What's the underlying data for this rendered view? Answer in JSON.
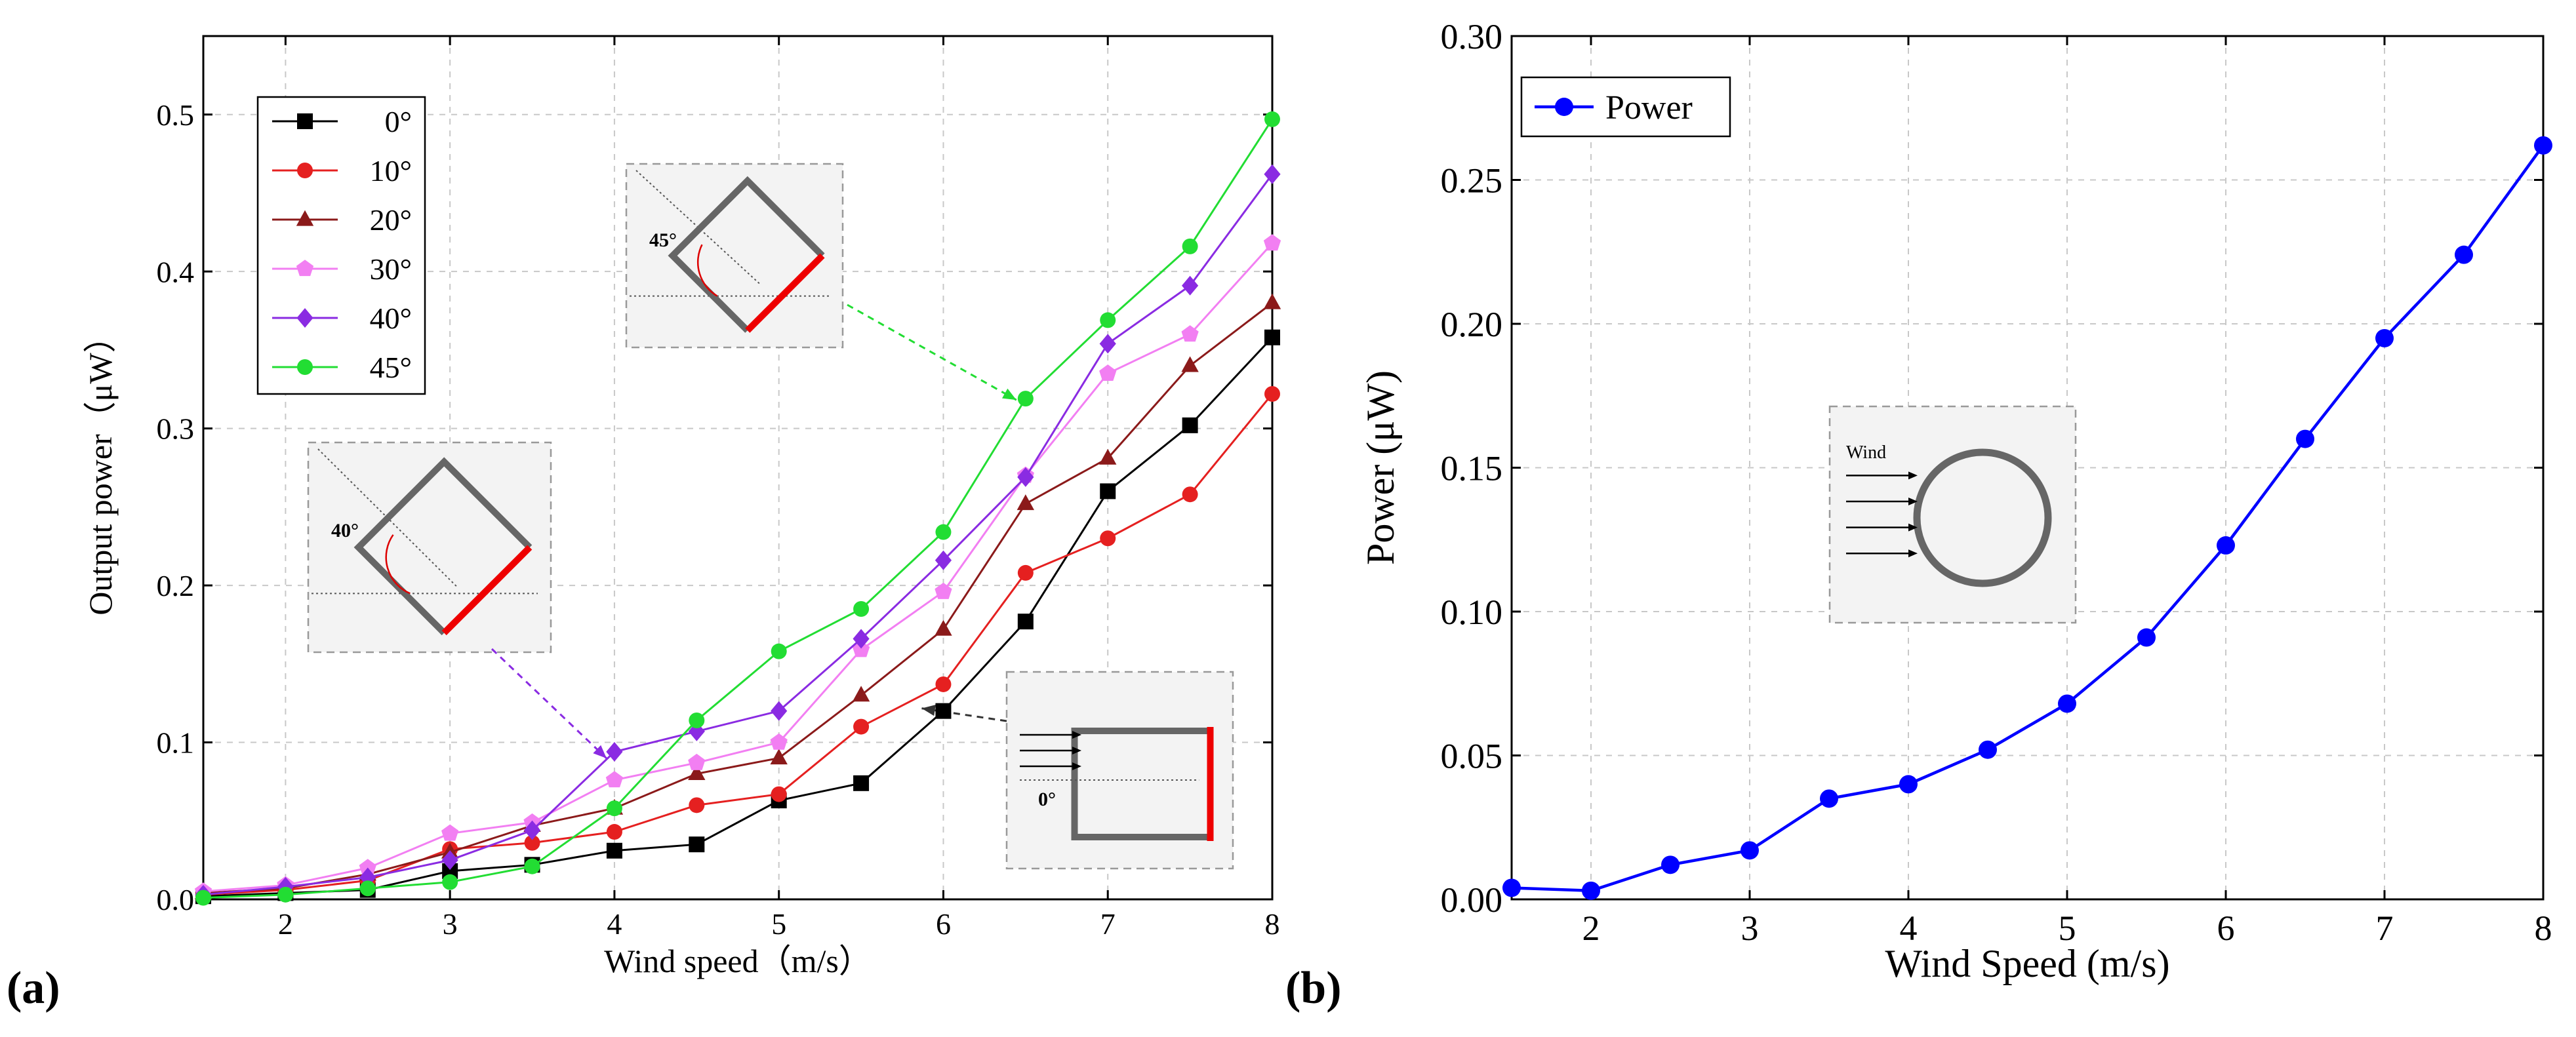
{
  "panel_labels": {
    "a": "(a)",
    "b": "(b)"
  },
  "chart_data": [
    {
      "type": "line",
      "xlabel": "Wind speed（m/s）",
      "ylabel": "Output power（μW）",
      "xlim": [
        1.5,
        8
      ],
      "ylim": [
        0,
        0.55
      ],
      "xticks": [
        "2",
        "3",
        "4",
        "5",
        "6",
        "7",
        "8"
      ],
      "yticks": [
        "0.0",
        "0.1",
        "0.2",
        "0.3",
        "0.4",
        "0.5"
      ],
      "grid": true,
      "legend_position": "top-left",
      "x": [
        1.5,
        2,
        2.5,
        3,
        3.5,
        4,
        4.5,
        5,
        5.5,
        6,
        6.5,
        7,
        7.5,
        8
      ],
      "series": [
        {
          "name": "0°",
          "color": "#000000",
          "marker": "square",
          "values": [
            0.002,
            0.004,
            0.006,
            0.018,
            0.022,
            0.031,
            0.035,
            0.063,
            0.074,
            0.12,
            0.177,
            0.26,
            0.302,
            0.358
          ]
        },
        {
          "name": "10°",
          "color": "#e52020",
          "marker": "circle",
          "values": [
            0.003,
            0.006,
            0.012,
            0.032,
            0.036,
            0.043,
            0.06,
            0.067,
            0.11,
            0.137,
            0.208,
            0.23,
            0.258,
            0.322
          ]
        },
        {
          "name": "20°",
          "color": "#8b1a1a",
          "marker": "triangle",
          "values": [
            0.004,
            0.007,
            0.016,
            0.03,
            0.047,
            0.058,
            0.08,
            0.09,
            0.13,
            0.172,
            0.252,
            0.281,
            0.34,
            0.38
          ]
        },
        {
          "name": "30°",
          "color": "#f27ff2",
          "marker": "pentagon",
          "values": [
            0.005,
            0.009,
            0.02,
            0.042,
            0.049,
            0.076,
            0.087,
            0.1,
            0.159,
            0.196,
            0.27,
            0.335,
            0.36,
            0.418
          ]
        },
        {
          "name": "40°",
          "color": "#8a2be2",
          "marker": "diamond",
          "values": [
            0.003,
            0.008,
            0.014,
            0.025,
            0.044,
            0.094,
            0.107,
            0.12,
            0.166,
            0.216,
            0.269,
            0.354,
            0.391,
            0.462
          ]
        },
        {
          "name": "45°",
          "color": "#22dd33",
          "marker": "circle",
          "values": [
            0.001,
            0.003,
            0.007,
            0.011,
            0.021,
            0.058,
            0.114,
            0.158,
            0.185,
            0.234,
            0.319,
            0.369,
            0.416,
            0.497
          ]
        }
      ],
      "insets": [
        {
          "angle_label": "45°",
          "wind_arrows": false
        },
        {
          "angle_label": "40°",
          "wind_arrows": false
        },
        {
          "angle_label": "0°",
          "wind_arrows": true
        }
      ]
    },
    {
      "type": "line",
      "xlabel": "Wind Speed (m/s)",
      "ylabel": "Power (μW)",
      "xlim": [
        1.5,
        8
      ],
      "ylim": [
        0,
        0.3
      ],
      "xticks": [
        "2",
        "3",
        "4",
        "5",
        "6",
        "7",
        "8"
      ],
      "yticks": [
        "0.00",
        "0.05",
        "0.10",
        "0.15",
        "0.20",
        "0.25",
        "0.30"
      ],
      "grid": true,
      "legend_position": "top-left",
      "x": [
        1.5,
        2,
        2.5,
        3,
        3.5,
        4,
        4.5,
        5,
        5.5,
        6,
        6.5,
        7,
        7.5,
        8
      ],
      "series": [
        {
          "name": "Power",
          "color": "#0000ff",
          "marker": "circle",
          "values": [
            0.004,
            0.003,
            0.012,
            0.017,
            0.035,
            0.04,
            0.052,
            0.068,
            0.091,
            0.123,
            0.16,
            0.195,
            0.224,
            0.262
          ]
        }
      ],
      "inset": {
        "label": "Wind"
      }
    }
  ]
}
